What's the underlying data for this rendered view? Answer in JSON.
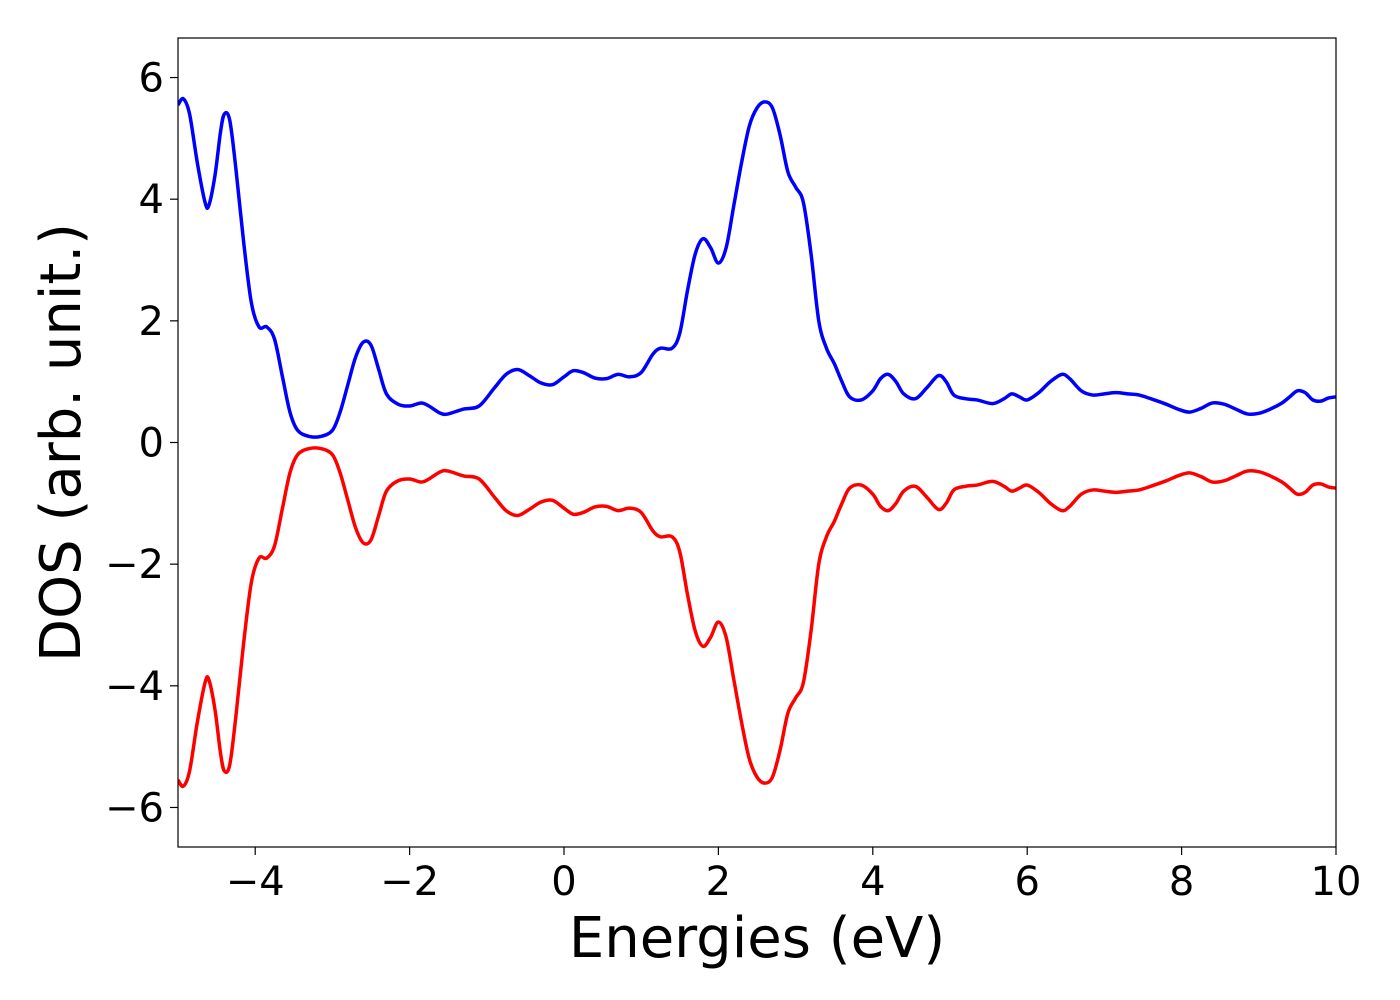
{
  "chart_data": {
    "type": "line",
    "xlabel": "Energies (eV)",
    "ylabel": "DOS (arb. unit.)",
    "xlim": [
      -5,
      10
    ],
    "ylim": [
      -6.65,
      6.65
    ],
    "grid": false,
    "legend": "none",
    "x_ticks": [
      -4,
      -2,
      0,
      2,
      4,
      6,
      8,
      10
    ],
    "x_tick_labels": [
      "−4",
      "−2",
      "0",
      "2",
      "4",
      "6",
      "8",
      "10"
    ],
    "y_ticks": [
      -6,
      -4,
      -2,
      0,
      2,
      4,
      6
    ],
    "y_tick_labels": [
      "−6",
      "−4",
      "−2",
      "0",
      "2",
      "4",
      "6"
    ],
    "series": [
      {
        "color": "#0000ff",
        "points": [
          [
            -5.0,
            5.55
          ],
          [
            -4.93,
            5.65
          ],
          [
            -4.85,
            5.4
          ],
          [
            -4.75,
            4.6
          ],
          [
            -4.65,
            3.95
          ],
          [
            -4.6,
            3.9
          ],
          [
            -4.52,
            4.4
          ],
          [
            -4.45,
            5.1
          ],
          [
            -4.4,
            5.4
          ],
          [
            -4.33,
            5.3
          ],
          [
            -4.25,
            4.5
          ],
          [
            -4.15,
            3.3
          ],
          [
            -4.05,
            2.3
          ],
          [
            -3.95,
            1.9
          ],
          [
            -3.85,
            1.9
          ],
          [
            -3.75,
            1.7
          ],
          [
            -3.65,
            1.1
          ],
          [
            -3.55,
            0.5
          ],
          [
            -3.45,
            0.2
          ],
          [
            -3.3,
            0.1
          ],
          [
            -3.15,
            0.1
          ],
          [
            -3.0,
            0.2
          ],
          [
            -2.9,
            0.5
          ],
          [
            -2.8,
            0.95
          ],
          [
            -2.7,
            1.4
          ],
          [
            -2.6,
            1.65
          ],
          [
            -2.5,
            1.6
          ],
          [
            -2.4,
            1.2
          ],
          [
            -2.3,
            0.8
          ],
          [
            -2.15,
            0.63
          ],
          [
            -2.0,
            0.6
          ],
          [
            -1.85,
            0.65
          ],
          [
            -1.75,
            0.6
          ],
          [
            -1.6,
            0.48
          ],
          [
            -1.5,
            0.47
          ],
          [
            -1.3,
            0.55
          ],
          [
            -1.1,
            0.6
          ],
          [
            -0.9,
            0.9
          ],
          [
            -0.75,
            1.12
          ],
          [
            -0.6,
            1.2
          ],
          [
            -0.45,
            1.1
          ],
          [
            -0.3,
            0.98
          ],
          [
            -0.15,
            0.95
          ],
          [
            0.0,
            1.08
          ],
          [
            0.12,
            1.18
          ],
          [
            0.25,
            1.15
          ],
          [
            0.4,
            1.06
          ],
          [
            0.55,
            1.05
          ],
          [
            0.7,
            1.12
          ],
          [
            0.85,
            1.08
          ],
          [
            1.0,
            1.15
          ],
          [
            1.15,
            1.45
          ],
          [
            1.25,
            1.55
          ],
          [
            1.4,
            1.55
          ],
          [
            1.5,
            1.8
          ],
          [
            1.6,
            2.5
          ],
          [
            1.7,
            3.1
          ],
          [
            1.8,
            3.35
          ],
          [
            1.9,
            3.2
          ],
          [
            2.0,
            2.95
          ],
          [
            2.1,
            3.2
          ],
          [
            2.2,
            3.9
          ],
          [
            2.3,
            4.6
          ],
          [
            2.4,
            5.2
          ],
          [
            2.5,
            5.5
          ],
          [
            2.6,
            5.6
          ],
          [
            2.7,
            5.5
          ],
          [
            2.8,
            5.05
          ],
          [
            2.9,
            4.45
          ],
          [
            3.0,
            4.2
          ],
          [
            3.1,
            3.95
          ],
          [
            3.2,
            3.1
          ],
          [
            3.3,
            2.0
          ],
          [
            3.4,
            1.55
          ],
          [
            3.5,
            1.3
          ],
          [
            3.6,
            1.0
          ],
          [
            3.7,
            0.75
          ],
          [
            3.85,
            0.7
          ],
          [
            4.0,
            0.85
          ],
          [
            4.1,
            1.05
          ],
          [
            4.2,
            1.12
          ],
          [
            4.3,
            1.0
          ],
          [
            4.4,
            0.8
          ],
          [
            4.55,
            0.72
          ],
          [
            4.7,
            0.9
          ],
          [
            4.85,
            1.1
          ],
          [
            4.95,
            1.0
          ],
          [
            5.05,
            0.78
          ],
          [
            5.2,
            0.72
          ],
          [
            5.35,
            0.7
          ],
          [
            5.55,
            0.64
          ],
          [
            5.7,
            0.72
          ],
          [
            5.8,
            0.8
          ],
          [
            5.9,
            0.75
          ],
          [
            6.0,
            0.7
          ],
          [
            6.15,
            0.82
          ],
          [
            6.3,
            1.0
          ],
          [
            6.45,
            1.12
          ],
          [
            6.55,
            1.05
          ],
          [
            6.7,
            0.85
          ],
          [
            6.85,
            0.78
          ],
          [
            7.0,
            0.8
          ],
          [
            7.15,
            0.82
          ],
          [
            7.3,
            0.8
          ],
          [
            7.45,
            0.78
          ],
          [
            7.6,
            0.72
          ],
          [
            7.8,
            0.63
          ],
          [
            7.95,
            0.55
          ],
          [
            8.1,
            0.5
          ],
          [
            8.25,
            0.56
          ],
          [
            8.4,
            0.65
          ],
          [
            8.55,
            0.63
          ],
          [
            8.7,
            0.55
          ],
          [
            8.85,
            0.47
          ],
          [
            9.0,
            0.48
          ],
          [
            9.15,
            0.55
          ],
          [
            9.3,
            0.65
          ],
          [
            9.4,
            0.75
          ],
          [
            9.5,
            0.85
          ],
          [
            9.6,
            0.82
          ],
          [
            9.7,
            0.7
          ],
          [
            9.8,
            0.68
          ],
          [
            9.9,
            0.73
          ],
          [
            10.0,
            0.75
          ]
        ]
      },
      {
        "color": "#ff0000",
        "points": [
          [
            -5.0,
            -5.55
          ],
          [
            -4.93,
            -5.65
          ],
          [
            -4.85,
            -5.4
          ],
          [
            -4.75,
            -4.6
          ],
          [
            -4.65,
            -3.95
          ],
          [
            -4.6,
            -3.9
          ],
          [
            -4.52,
            -4.4
          ],
          [
            -4.45,
            -5.1
          ],
          [
            -4.4,
            -5.4
          ],
          [
            -4.33,
            -5.3
          ],
          [
            -4.25,
            -4.5
          ],
          [
            -4.15,
            -3.3
          ],
          [
            -4.05,
            -2.3
          ],
          [
            -3.95,
            -1.9
          ],
          [
            -3.85,
            -1.9
          ],
          [
            -3.75,
            -1.7
          ],
          [
            -3.65,
            -1.1
          ],
          [
            -3.55,
            -0.5
          ],
          [
            -3.45,
            -0.2
          ],
          [
            -3.3,
            -0.1
          ],
          [
            -3.15,
            -0.1
          ],
          [
            -3.0,
            -0.2
          ],
          [
            -2.9,
            -0.5
          ],
          [
            -2.8,
            -0.95
          ],
          [
            -2.7,
            -1.4
          ],
          [
            -2.6,
            -1.65
          ],
          [
            -2.5,
            -1.6
          ],
          [
            -2.4,
            -1.2
          ],
          [
            -2.3,
            -0.8
          ],
          [
            -2.15,
            -0.63
          ],
          [
            -2.0,
            -0.6
          ],
          [
            -1.85,
            -0.65
          ],
          [
            -1.75,
            -0.6
          ],
          [
            -1.6,
            -0.48
          ],
          [
            -1.5,
            -0.47
          ],
          [
            -1.3,
            -0.55
          ],
          [
            -1.1,
            -0.6
          ],
          [
            -0.9,
            -0.9
          ],
          [
            -0.75,
            -1.12
          ],
          [
            -0.6,
            -1.2
          ],
          [
            -0.45,
            -1.1
          ],
          [
            -0.3,
            -0.98
          ],
          [
            -0.15,
            -0.95
          ],
          [
            0.0,
            -1.08
          ],
          [
            0.12,
            -1.18
          ],
          [
            0.25,
            -1.15
          ],
          [
            0.4,
            -1.06
          ],
          [
            0.55,
            -1.05
          ],
          [
            0.7,
            -1.12
          ],
          [
            0.85,
            -1.08
          ],
          [
            1.0,
            -1.15
          ],
          [
            1.15,
            -1.45
          ],
          [
            1.25,
            -1.55
          ],
          [
            1.4,
            -1.55
          ],
          [
            1.5,
            -1.8
          ],
          [
            1.6,
            -2.5
          ],
          [
            1.7,
            -3.1
          ],
          [
            1.8,
            -3.35
          ],
          [
            1.9,
            -3.2
          ],
          [
            2.0,
            -2.95
          ],
          [
            2.1,
            -3.2
          ],
          [
            2.2,
            -3.9
          ],
          [
            2.3,
            -4.6
          ],
          [
            2.4,
            -5.2
          ],
          [
            2.5,
            -5.5
          ],
          [
            2.6,
            -5.6
          ],
          [
            2.7,
            -5.5
          ],
          [
            2.8,
            -5.05
          ],
          [
            2.9,
            -4.45
          ],
          [
            3.0,
            -4.2
          ],
          [
            3.1,
            -3.95
          ],
          [
            3.2,
            -3.1
          ],
          [
            3.3,
            -2.0
          ],
          [
            3.4,
            -1.55
          ],
          [
            3.5,
            -1.3
          ],
          [
            3.6,
            -1.0
          ],
          [
            3.7,
            -0.75
          ],
          [
            3.85,
            -0.7
          ],
          [
            4.0,
            -0.85
          ],
          [
            4.1,
            -1.05
          ],
          [
            4.2,
            -1.12
          ],
          [
            4.3,
            -1.0
          ],
          [
            4.4,
            -0.8
          ],
          [
            4.55,
            -0.72
          ],
          [
            4.7,
            -0.9
          ],
          [
            4.85,
            -1.1
          ],
          [
            4.95,
            -1.0
          ],
          [
            5.05,
            -0.78
          ],
          [
            5.2,
            -0.72
          ],
          [
            5.35,
            -0.7
          ],
          [
            5.55,
            -0.64
          ],
          [
            5.7,
            -0.72
          ],
          [
            5.8,
            -0.8
          ],
          [
            5.9,
            -0.75
          ],
          [
            6.0,
            -0.7
          ],
          [
            6.15,
            -0.82
          ],
          [
            6.3,
            -1.0
          ],
          [
            6.45,
            -1.12
          ],
          [
            6.55,
            -1.05
          ],
          [
            6.7,
            -0.85
          ],
          [
            6.85,
            -0.78
          ],
          [
            7.0,
            -0.8
          ],
          [
            7.15,
            -0.82
          ],
          [
            7.3,
            -0.8
          ],
          [
            7.45,
            -0.78
          ],
          [
            7.6,
            -0.72
          ],
          [
            7.8,
            -0.63
          ],
          [
            7.95,
            -0.55
          ],
          [
            8.1,
            -0.5
          ],
          [
            8.25,
            -0.56
          ],
          [
            8.4,
            -0.65
          ],
          [
            8.55,
            -0.63
          ],
          [
            8.7,
            -0.55
          ],
          [
            8.85,
            -0.47
          ],
          [
            9.0,
            -0.48
          ],
          [
            9.15,
            -0.55
          ],
          [
            9.3,
            -0.65
          ],
          [
            9.4,
            -0.75
          ],
          [
            9.5,
            -0.85
          ],
          [
            9.6,
            -0.82
          ],
          [
            9.7,
            -0.7
          ],
          [
            9.8,
            -0.68
          ],
          [
            9.9,
            -0.73
          ],
          [
            10.0,
            -0.75
          ]
        ]
      }
    ]
  }
}
